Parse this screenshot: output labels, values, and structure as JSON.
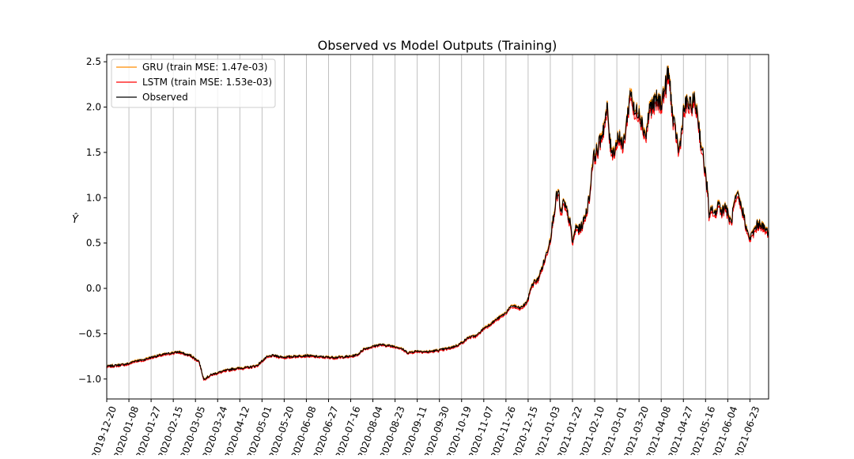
{
  "chart_data": {
    "type": "line",
    "title": "Observed vs Model Outputs (Training)",
    "xlabel": "",
    "ylabel": "Ŷ",
    "ylim": [
      -1.22,
      2.58
    ],
    "yticks": [
      -1.0,
      -0.5,
      0.0,
      0.5,
      1.0,
      1.5,
      2.0,
      2.5
    ],
    "ytick_labels": [
      "−1.0",
      "−0.5",
      "0.0",
      "0.5",
      "1.0",
      "1.5",
      "2.0",
      "2.5"
    ],
    "x_start": "2019-12-20",
    "x_end": "2021-07-09",
    "xticks": [
      "2019-12-20",
      "2020-01-08",
      "2020-01-27",
      "2020-02-15",
      "2020-03-05",
      "2020-03-24",
      "2020-04-12",
      "2020-05-01",
      "2020-05-20",
      "2020-06-08",
      "2020-06-27",
      "2020-07-16",
      "2020-08-04",
      "2020-08-23",
      "2020-09-11",
      "2020-09-30",
      "2020-10-19",
      "2020-11-07",
      "2020-11-26",
      "2020-12-15",
      "2021-01-03",
      "2021-01-22",
      "2021-02-10",
      "2021-03-01",
      "2021-03-20",
      "2021-04-08",
      "2021-04-27",
      "2021-05-16",
      "2021-06-04",
      "2021-06-23"
    ],
    "grid": "vertical",
    "legend_position": "top-left",
    "series": [
      {
        "name": "GRU (train MSE: 1.47e-03)",
        "color": "#ff8c00",
        "offset": 0.02,
        "values": []
      },
      {
        "name": "LSTM (train MSE: 1.53e-03)",
        "color": "#ff0000",
        "offset": -0.035,
        "values": []
      },
      {
        "name": "Observed",
        "color": "#000000",
        "values": [
          [
            "2019-12-20",
            -0.86
          ],
          [
            "2019-12-27",
            -0.85
          ],
          [
            "2020-01-03",
            -0.84
          ],
          [
            "2020-01-08",
            -0.83
          ],
          [
            "2020-01-13",
            -0.8
          ],
          [
            "2020-01-20",
            -0.79
          ],
          [
            "2020-01-27",
            -0.76
          ],
          [
            "2020-02-03",
            -0.74
          ],
          [
            "2020-02-10",
            -0.72
          ],
          [
            "2020-02-15",
            -0.71
          ],
          [
            "2020-02-20",
            -0.7
          ],
          [
            "2020-02-26",
            -0.73
          ],
          [
            "2020-03-01",
            -0.74
          ],
          [
            "2020-03-05",
            -0.78
          ],
          [
            "2020-03-08",
            -0.8
          ],
          [
            "2020-03-10",
            -0.9
          ],
          [
            "2020-03-12",
            -1.0
          ],
          [
            "2020-03-15",
            -0.98
          ],
          [
            "2020-03-19",
            -0.95
          ],
          [
            "2020-03-24",
            -0.93
          ],
          [
            "2020-03-30",
            -0.91
          ],
          [
            "2020-04-05",
            -0.89
          ],
          [
            "2020-04-12",
            -0.88
          ],
          [
            "2020-04-20",
            -0.87
          ],
          [
            "2020-04-27",
            -0.85
          ],
          [
            "2020-05-01",
            -0.8
          ],
          [
            "2020-05-05",
            -0.76
          ],
          [
            "2020-05-10",
            -0.74
          ],
          [
            "2020-05-15",
            -0.75
          ],
          [
            "2020-05-20",
            -0.76
          ],
          [
            "2020-05-28",
            -0.75
          ],
          [
            "2020-06-08",
            -0.74
          ],
          [
            "2020-06-15",
            -0.75
          ],
          [
            "2020-06-27",
            -0.76
          ],
          [
            "2020-07-05",
            -0.76
          ],
          [
            "2020-07-16",
            -0.75
          ],
          [
            "2020-07-22",
            -0.73
          ],
          [
            "2020-07-27",
            -0.67
          ],
          [
            "2020-08-04",
            -0.64
          ],
          [
            "2020-08-10",
            -0.62
          ],
          [
            "2020-08-17",
            -0.63
          ],
          [
            "2020-08-23",
            -0.64
          ],
          [
            "2020-08-28",
            -0.66
          ],
          [
            "2020-09-03",
            -0.71
          ],
          [
            "2020-09-11",
            -0.69
          ],
          [
            "2020-09-20",
            -0.7
          ],
          [
            "2020-09-30",
            -0.68
          ],
          [
            "2020-10-08",
            -0.66
          ],
          [
            "2020-10-15",
            -0.63
          ],
          [
            "2020-10-19",
            -0.6
          ],
          [
            "2020-10-25",
            -0.54
          ],
          [
            "2020-11-01",
            -0.52
          ],
          [
            "2020-11-07",
            -0.44
          ],
          [
            "2020-11-12",
            -0.4
          ],
          [
            "2020-11-18",
            -0.34
          ],
          [
            "2020-11-26",
            -0.27
          ],
          [
            "2020-11-28",
            -0.23
          ],
          [
            "2020-12-02",
            -0.19
          ],
          [
            "2020-12-08",
            -0.22
          ],
          [
            "2020-12-12",
            -0.18
          ],
          [
            "2020-12-15",
            -0.12
          ],
          [
            "2020-12-17",
            0.0
          ],
          [
            "2020-12-20",
            0.07
          ],
          [
            "2020-12-23",
            0.09
          ],
          [
            "2020-12-27",
            0.23
          ],
          [
            "2020-12-30",
            0.35
          ],
          [
            "2021-01-03",
            0.55
          ],
          [
            "2021-01-06",
            0.82
          ],
          [
            "2021-01-08",
            1.0
          ],
          [
            "2021-01-10",
            1.07
          ],
          [
            "2021-01-12",
            0.8
          ],
          [
            "2021-01-14",
            0.95
          ],
          [
            "2021-01-17",
            0.86
          ],
          [
            "2021-01-20",
            0.72
          ],
          [
            "2021-01-22",
            0.5
          ],
          [
            "2021-01-25",
            0.68
          ],
          [
            "2021-01-28",
            0.65
          ],
          [
            "2021-01-31",
            0.72
          ],
          [
            "2021-02-03",
            0.85
          ],
          [
            "2021-02-06",
            1.05
          ],
          [
            "2021-02-08",
            1.4
          ],
          [
            "2021-02-10",
            1.47
          ],
          [
            "2021-02-13",
            1.55
          ],
          [
            "2021-02-16",
            1.7
          ],
          [
            "2021-02-19",
            1.85
          ],
          [
            "2021-02-21",
            2.0
          ],
          [
            "2021-02-23",
            1.6
          ],
          [
            "2021-02-26",
            1.5
          ],
          [
            "2021-03-01",
            1.62
          ],
          [
            "2021-03-03",
            1.7
          ],
          [
            "2021-03-06",
            1.55
          ],
          [
            "2021-03-09",
            1.8
          ],
          [
            "2021-03-11",
            2.0
          ],
          [
            "2021-03-13",
            2.2
          ],
          [
            "2021-03-16",
            1.92
          ],
          [
            "2021-03-20",
            1.98
          ],
          [
            "2021-03-23",
            1.8
          ],
          [
            "2021-03-26",
            1.68
          ],
          [
            "2021-03-29",
            2.0
          ],
          [
            "2021-04-01",
            2.02
          ],
          [
            "2021-04-04",
            2.08
          ],
          [
            "2021-04-08",
            2.05
          ],
          [
            "2021-04-12",
            2.25
          ],
          [
            "2021-04-14",
            2.38
          ],
          [
            "2021-04-16",
            2.2
          ],
          [
            "2021-04-18",
            1.85
          ],
          [
            "2021-04-21",
            1.7
          ],
          [
            "2021-04-23",
            1.5
          ],
          [
            "2021-04-25",
            1.68
          ],
          [
            "2021-04-27",
            1.95
          ],
          [
            "2021-04-30",
            2.05
          ],
          [
            "2021-05-03",
            2.0
          ],
          [
            "2021-05-06",
            2.08
          ],
          [
            "2021-05-09",
            1.95
          ],
          [
            "2021-05-12",
            1.6
          ],
          [
            "2021-05-14",
            1.45
          ],
          [
            "2021-05-16",
            1.25
          ],
          [
            "2021-05-18",
            1.05
          ],
          [
            "2021-05-19",
            0.75
          ],
          [
            "2021-05-21",
            0.9
          ],
          [
            "2021-05-24",
            0.8
          ],
          [
            "2021-05-27",
            0.95
          ],
          [
            "2021-05-30",
            0.85
          ],
          [
            "2021-06-02",
            0.92
          ],
          [
            "2021-06-04",
            0.82
          ],
          [
            "2021-06-07",
            0.72
          ],
          [
            "2021-06-09",
            0.9
          ],
          [
            "2021-06-11",
            0.98
          ],
          [
            "2021-06-13",
            1.02
          ],
          [
            "2021-06-15",
            0.92
          ],
          [
            "2021-06-18",
            0.8
          ],
          [
            "2021-06-21",
            0.6
          ],
          [
            "2021-06-23",
            0.55
          ],
          [
            "2021-06-26",
            0.62
          ],
          [
            "2021-06-29",
            0.7
          ],
          [
            "2021-07-02",
            0.72
          ],
          [
            "2021-07-05",
            0.66
          ],
          [
            "2021-07-09",
            0.62
          ]
        ]
      }
    ]
  }
}
